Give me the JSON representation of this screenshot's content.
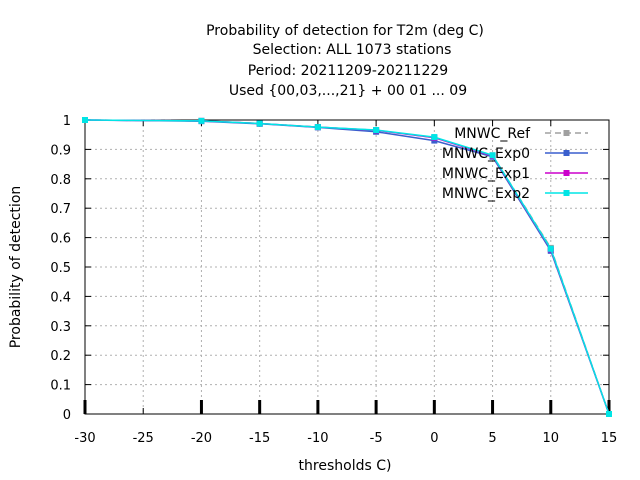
{
  "chart_data": {
    "type": "line",
    "title_lines": [
      "Probability of detection  for T2m (deg C)",
      "Selection: ALL   1073 stations",
      "Period: 20211209-20211229",
      "Used {00,03,...,21} + 00 01 ... 09"
    ],
    "xlabel": "thresholds C)",
    "ylabel": "Probability of detection",
    "xlim": [
      -30,
      15
    ],
    "ylim": [
      0,
      1
    ],
    "xticks": [
      "-30",
      "-25",
      "-20",
      "-15",
      "-10",
      "-5",
      "0",
      "5",
      "10",
      "15"
    ],
    "yticks": [
      "0",
      "0.1",
      "0.2",
      "0.3",
      "0.4",
      "0.5",
      "0.6",
      "0.7",
      "0.8",
      "0.9",
      "1"
    ],
    "grid": true,
    "legend_position": "top-right",
    "x": [
      -30,
      -20,
      -15,
      -10,
      -5,
      0,
      5,
      10,
      15
    ],
    "series": [
      {
        "name": "MNWC_Ref",
        "color": "#a0a0a0",
        "dash": true,
        "values": [
          1.0,
          0.997,
          0.988,
          0.976,
          0.965,
          0.94,
          0.88,
          0.565,
          0.0
        ]
      },
      {
        "name": "MNWC_Exp0",
        "color": "#3a5fcd",
        "dash": false,
        "values": [
          1.0,
          0.996,
          0.987,
          0.975,
          0.96,
          0.93,
          0.875,
          0.555,
          0.0
        ]
      },
      {
        "name": "MNWC_Exp1",
        "color": "#cc00cc",
        "dash": false,
        "values": [
          1.0,
          0.997,
          0.988,
          0.976,
          0.965,
          0.94,
          0.878,
          0.56,
          0.0
        ]
      },
      {
        "name": "MNWC_Exp2",
        "color": "#00e5e5",
        "dash": false,
        "values": [
          1.0,
          0.997,
          0.988,
          0.976,
          0.966,
          0.942,
          0.88,
          0.562,
          0.0
        ]
      }
    ]
  }
}
